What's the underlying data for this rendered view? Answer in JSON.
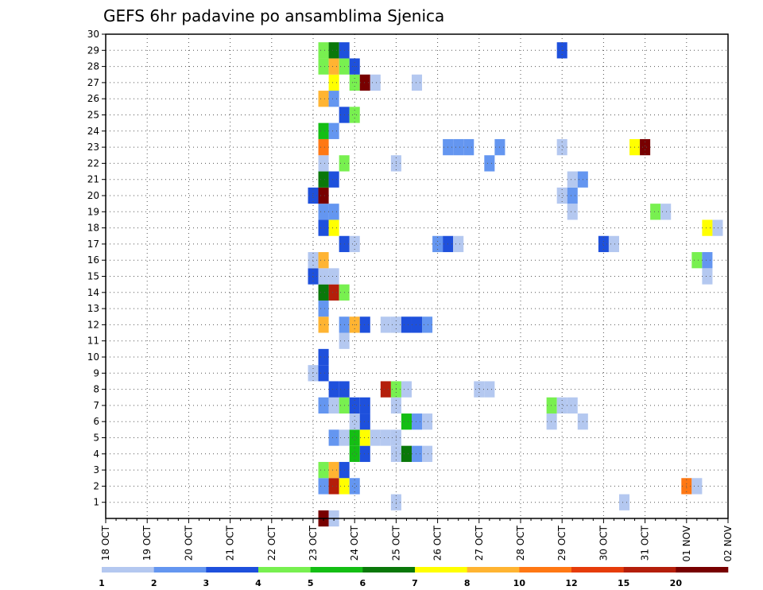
{
  "chart_data": {
    "type": "heatmap",
    "title": "GEFS 6hr padavine po ansamblima Sjenica",
    "x_tick_labels": [
      "18 OCT",
      "19 OCT",
      "20 OCT",
      "21 OCT",
      "22 OCT",
      "23 OCT",
      "24 OCT",
      "25 OCT",
      "26 OCT",
      "27 OCT",
      "28 OCT",
      "29 OCT",
      "30 OCT",
      "31 OCT",
      "01 NOV",
      "02 NOV"
    ],
    "y_tick_labels": [
      "1",
      "2",
      "3",
      "4",
      "5",
      "6",
      "7",
      "8",
      "9",
      "10",
      "11",
      "12",
      "13",
      "14",
      "15",
      "16",
      "17",
      "18",
      "19",
      "20",
      "21",
      "22",
      "23",
      "24",
      "25",
      "26",
      "27",
      "28",
      "29",
      "30"
    ],
    "x_range_days": [
      0,
      15
    ],
    "y_range_members": [
      0,
      30
    ],
    "grid": true,
    "legend_placement": "bottom",
    "color_scale": {
      "labels": [
        "1",
        "2",
        "3",
        "4",
        "5",
        "6",
        "7",
        "8",
        "10",
        "12",
        "15",
        "20"
      ],
      "colors": [
        "#b4c8f0",
        "#6496f0",
        "#1e50dc",
        "#78f050",
        "#14be14",
        "#0a780a",
        "#ffff00",
        "#ffb432",
        "#ff7814",
        "#e63c0a",
        "#b41e0a",
        "#780000"
      ]
    },
    "cells": [
      [
        5.25,
        0,
        11
      ],
      [
        5.5,
        0,
        0
      ],
      [
        7.0,
        1,
        0
      ],
      [
        12.5,
        1,
        0
      ],
      [
        5.25,
        2,
        1
      ],
      [
        5.5,
        2,
        10
      ],
      [
        5.75,
        2,
        6
      ],
      [
        6.0,
        2,
        1
      ],
      [
        14.0,
        2,
        8
      ],
      [
        14.25,
        2,
        0
      ],
      [
        5.25,
        3,
        3
      ],
      [
        5.5,
        3,
        7
      ],
      [
        5.75,
        3,
        2
      ],
      [
        6.0,
        4,
        4
      ],
      [
        6.25,
        4,
        2
      ],
      [
        7.0,
        4,
        0
      ],
      [
        7.25,
        4,
        5
      ],
      [
        7.5,
        4,
        1
      ],
      [
        7.75,
        4,
        0
      ],
      [
        5.5,
        5,
        1
      ],
      [
        5.75,
        5,
        0
      ],
      [
        6.0,
        5,
        4
      ],
      [
        6.25,
        5,
        6
      ],
      [
        6.5,
        5,
        0
      ],
      [
        6.75,
        5,
        0
      ],
      [
        7.0,
        5,
        0
      ],
      [
        6.0,
        6,
        0
      ],
      [
        6.25,
        6,
        2
      ],
      [
        7.25,
        6,
        4
      ],
      [
        7.5,
        6,
        1
      ],
      [
        7.75,
        6,
        0
      ],
      [
        10.75,
        6,
        0
      ],
      [
        11.5,
        6,
        0
      ],
      [
        5.25,
        7,
        1
      ],
      [
        5.5,
        7,
        0
      ],
      [
        5.75,
        7,
        3
      ],
      [
        6.0,
        7,
        2
      ],
      [
        6.25,
        7,
        2
      ],
      [
        7.0,
        7,
        0
      ],
      [
        10.75,
        7,
        3
      ],
      [
        11.0,
        7,
        0
      ],
      [
        11.25,
        7,
        0
      ],
      [
        5.5,
        8,
        2
      ],
      [
        5.75,
        8,
        2
      ],
      [
        6.75,
        8,
        10
      ],
      [
        7.0,
        8,
        3
      ],
      [
        7.25,
        8,
        0
      ],
      [
        9.0,
        8,
        0
      ],
      [
        9.25,
        8,
        0
      ],
      [
        5.0,
        9,
        0
      ],
      [
        5.25,
        9,
        2
      ],
      [
        5.25,
        10,
        2
      ],
      [
        5.75,
        11,
        0
      ],
      [
        5.25,
        12,
        7
      ],
      [
        5.75,
        12,
        1
      ],
      [
        6.0,
        12,
        7
      ],
      [
        6.25,
        12,
        2
      ],
      [
        6.75,
        12,
        0
      ],
      [
        7.0,
        12,
        0
      ],
      [
        7.25,
        12,
        2
      ],
      [
        7.5,
        12,
        2
      ],
      [
        7.75,
        12,
        1
      ],
      [
        5.25,
        13,
        1
      ],
      [
        5.25,
        14,
        5
      ],
      [
        5.5,
        14,
        10
      ],
      [
        5.75,
        14,
        3
      ],
      [
        5.0,
        15,
        2
      ],
      [
        5.25,
        15,
        0
      ],
      [
        5.5,
        15,
        0
      ],
      [
        14.5,
        15,
        0
      ],
      [
        5.0,
        16,
        0
      ],
      [
        5.25,
        16,
        7
      ],
      [
        14.25,
        16,
        3
      ],
      [
        14.5,
        16,
        1
      ],
      [
        5.75,
        17,
        2
      ],
      [
        6.0,
        17,
        0
      ],
      [
        8.0,
        17,
        1
      ],
      [
        8.25,
        17,
        2
      ],
      [
        8.5,
        17,
        0
      ],
      [
        12.0,
        17,
        2
      ],
      [
        12.25,
        17,
        0
      ],
      [
        5.25,
        18,
        2
      ],
      [
        5.5,
        18,
        6
      ],
      [
        14.5,
        18,
        6
      ],
      [
        14.75,
        18,
        0
      ],
      [
        5.25,
        19,
        1
      ],
      [
        5.5,
        19,
        1
      ],
      [
        11.25,
        19,
        0
      ],
      [
        13.25,
        19,
        3
      ],
      [
        13.5,
        19,
        0
      ],
      [
        5.0,
        20,
        2
      ],
      [
        5.25,
        20,
        11
      ],
      [
        11.0,
        20,
        0
      ],
      [
        11.25,
        20,
        1
      ],
      [
        5.25,
        21,
        5
      ],
      [
        5.5,
        21,
        2
      ],
      [
        11.25,
        21,
        0
      ],
      [
        11.5,
        21,
        1
      ],
      [
        5.25,
        22,
        0
      ],
      [
        5.75,
        22,
        3
      ],
      [
        7.0,
        22,
        0
      ],
      [
        9.25,
        22,
        1
      ],
      [
        5.25,
        23,
        8
      ],
      [
        8.25,
        23,
        1
      ],
      [
        8.5,
        23,
        1
      ],
      [
        8.75,
        23,
        1
      ],
      [
        9.5,
        23,
        1
      ],
      [
        11.0,
        23,
        0
      ],
      [
        12.75,
        23,
        6
      ],
      [
        13.0,
        23,
        11
      ],
      [
        5.25,
        24,
        4
      ],
      [
        5.5,
        24,
        1
      ],
      [
        5.75,
        25,
        2
      ],
      [
        6.0,
        25,
        3
      ],
      [
        5.25,
        26,
        7
      ],
      [
        5.5,
        26,
        1
      ],
      [
        5.5,
        27,
        6
      ],
      [
        6.0,
        27,
        3
      ],
      [
        6.25,
        27,
        11
      ],
      [
        6.5,
        27,
        0
      ],
      [
        7.5,
        27,
        0
      ],
      [
        5.25,
        28,
        3
      ],
      [
        5.5,
        28,
        7
      ],
      [
        5.75,
        28,
        3
      ],
      [
        6.0,
        28,
        2
      ],
      [
        5.25,
        29,
        3
      ],
      [
        5.5,
        29,
        5
      ],
      [
        5.75,
        29,
        2
      ],
      [
        11.0,
        29,
        2
      ]
    ]
  }
}
